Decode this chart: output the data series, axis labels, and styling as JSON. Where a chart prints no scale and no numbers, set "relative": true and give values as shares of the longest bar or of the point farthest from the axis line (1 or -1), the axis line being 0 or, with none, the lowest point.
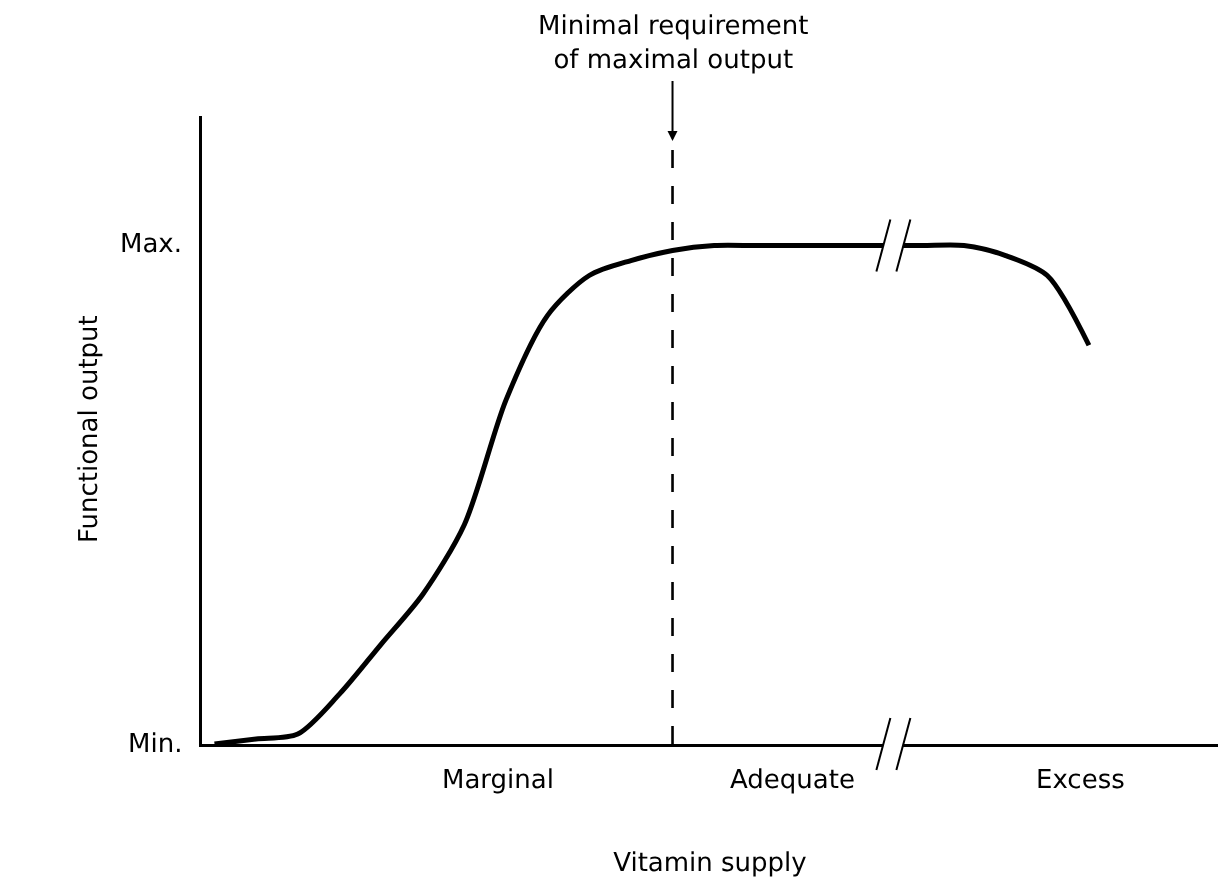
{
  "chart_data": {
    "type": "line",
    "xlabel": "Vitamin supply",
    "ylabel": "Functional output",
    "categories": [
      null,
      null,
      null,
      null,
      null,
      null,
      null,
      null,
      null,
      null,
      null,
      null,
      null,
      null,
      null,
      null,
      null,
      null,
      null,
      null,
      null,
      null
    ],
    "series": [
      {
        "color": "#000000",
        "values": [
          0,
          0.01,
          0.02,
          0.1,
          0.2,
          0.3,
          0.44,
          0.69,
          0.86,
          0.94,
          0.97,
          0.99,
          1,
          1,
          1,
          1,
          1,
          1,
          1,
          0.98,
          0.94,
          0.8
        ]
      }
    ],
    "relative": true,
    "marker": "none",
    "line_style": "solid",
    "annotations": [
      "Min.",
      "Max.",
      "Minimal requirement\nof maximal output",
      "Marginal",
      "Adequate",
      "Excess"
    ]
  }
}
